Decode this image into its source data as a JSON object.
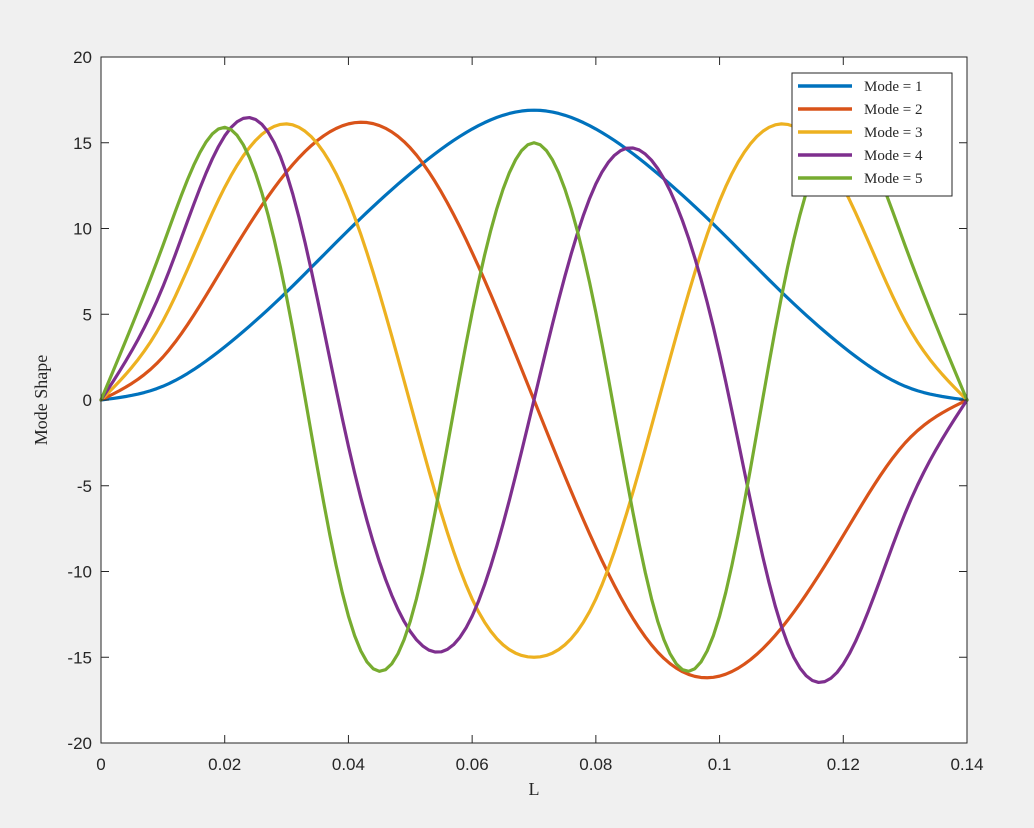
{
  "chart_data": {
    "type": "line",
    "title": "",
    "xlabel": "L",
    "ylabel": "Mode Shape",
    "xlim": [
      0,
      0.14
    ],
    "ylim": [
      -20,
      20
    ],
    "xticks": [
      0,
      0.02,
      0.04,
      0.06,
      0.08,
      0.1,
      0.12,
      0.14
    ],
    "xtick_labels": [
      "0",
      "0.02",
      "0.04",
      "0.06",
      "0.08",
      "0.1",
      "0.12",
      "0.14"
    ],
    "yticks": [
      -20,
      -15,
      -10,
      -5,
      0,
      5,
      10,
      15,
      20
    ],
    "ytick_labels": [
      "-20",
      "-15",
      "-10",
      "-5",
      "0",
      "5",
      "10",
      "15",
      "20"
    ],
    "grid": false,
    "legend_position": "top-right",
    "series": [
      {
        "name": "Mode = 1",
        "color": "#0072bd",
        "x": [
          0,
          0.01,
          0.02,
          0.03,
          0.04,
          0.05,
          0.06,
          0.07,
          0.08,
          0.09,
          0.1,
          0.11,
          0.12,
          0.13,
          0.14
        ],
        "y": [
          0,
          0.8,
          3.1,
          6.3,
          9.9,
          13.2,
          15.8,
          16.9,
          15.8,
          13.2,
          9.9,
          6.3,
          3.1,
          0.8,
          0
        ]
      },
      {
        "name": "Mode = 2",
        "color": "#d95319",
        "x": [
          0,
          0.01,
          0.02,
          0.03,
          0.04,
          0.05,
          0.06,
          0.07,
          0.08,
          0.09,
          0.1,
          0.11,
          0.12,
          0.13,
          0.14
        ],
        "y": [
          0,
          2.5,
          7.9,
          13.3,
          16.1,
          14.7,
          8.6,
          0,
          -8.6,
          -14.7,
          -16.1,
          -13.3,
          -7.9,
          -2.5,
          0
        ]
      },
      {
        "name": "Mode = 3",
        "color": "#edb120",
        "x": [
          0,
          0.01,
          0.02,
          0.03,
          0.04,
          0.05,
          0.06,
          0.07,
          0.08,
          0.09,
          0.1,
          0.11,
          0.12,
          0.13,
          0.14
        ],
        "y": [
          0,
          4.6,
          12.4,
          16.1,
          11.6,
          -0.2,
          -11.6,
          -15.0,
          -11.6,
          -0.2,
          11.6,
          16.1,
          12.4,
          4.6,
          0
        ]
      },
      {
        "name": "Mode = 4",
        "color": "#7e2f8e",
        "x": [
          0,
          0.01,
          0.02,
          0.03,
          0.04,
          0.05,
          0.06,
          0.07,
          0.08,
          0.09,
          0.1,
          0.11,
          0.12,
          0.13,
          0.14
        ],
        "y": [
          0,
          6.6,
          15.4,
          13.2,
          -2.7,
          -13.5,
          -12.6,
          0,
          12.6,
          13.5,
          2.7,
          -13.2,
          -15.4,
          -6.6,
          0
        ]
      },
      {
        "name": "Mode = 5",
        "color": "#77ac30",
        "x": [
          0,
          0.01,
          0.02,
          0.03,
          0.04,
          0.05,
          0.06,
          0.07,
          0.08,
          0.09,
          0.1,
          0.11,
          0.12,
          0.13,
          0.14
        ],
        "y": [
          0,
          9.0,
          15.9,
          6.0,
          -12.6,
          -12.9,
          5.1,
          15.0,
          5.1,
          -12.9,
          -12.6,
          6.0,
          15.9,
          9.0,
          0
        ]
      }
    ]
  }
}
